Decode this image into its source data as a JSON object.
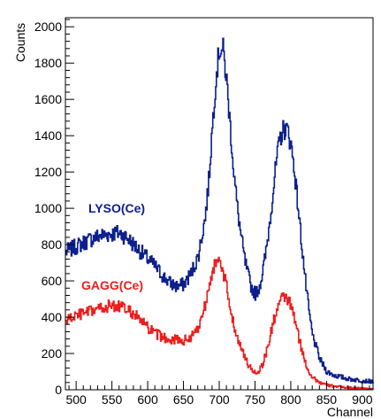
{
  "chart_data": {
    "type": "line",
    "title": "",
    "xlabel": "Channel",
    "ylabel": "Counts",
    "xlim": [
      485,
      915
    ],
    "ylim": [
      0,
      2050
    ],
    "xticks": [
      500,
      550,
      600,
      650,
      700,
      750,
      800,
      850,
      900
    ],
    "yticks": [
      0,
      200,
      400,
      600,
      800,
      1000,
      1200,
      1400,
      1600,
      1800,
      2000
    ],
    "grid": false,
    "colors": {
      "LYSO(Ce)": "#0b1e8c",
      "GAGG(Ce)": "#ee1c1c"
    },
    "series": [
      {
        "name": "LYSO(Ce)",
        "x": [
          485,
          500,
          510,
          520,
          530,
          540,
          550,
          560,
          570,
          580,
          590,
          600,
          610,
          620,
          630,
          640,
          650,
          660,
          670,
          680,
          685,
          690,
          695,
          700,
          705,
          710,
          715,
          720,
          725,
          730,
          735,
          740,
          745,
          750,
          755,
          760,
          765,
          770,
          775,
          780,
          785,
          790,
          795,
          800,
          805,
          810,
          815,
          820,
          825,
          830,
          840,
          850,
          860,
          870,
          880,
          890,
          900,
          915
        ],
        "y": [
          760,
          790,
          810,
          830,
          845,
          855,
          860,
          865,
          840,
          800,
          760,
          720,
          680,
          630,
          590,
          570,
          580,
          640,
          730,
          950,
          1150,
          1450,
          1720,
          1880,
          1870,
          1700,
          1450,
          1200,
          1000,
          850,
          720,
          630,
          560,
          530,
          560,
          640,
          760,
          920,
          1100,
          1270,
          1390,
          1440,
          1430,
          1350,
          1200,
          1000,
          800,
          600,
          430,
          300,
          170,
          100,
          80,
          70,
          60,
          55,
          50,
          45
        ]
      },
      {
        "name": "GAGG(Ce)",
        "x": [
          485,
          500,
          510,
          520,
          530,
          540,
          550,
          560,
          570,
          580,
          590,
          600,
          610,
          620,
          630,
          640,
          650,
          660,
          670,
          680,
          685,
          690,
          695,
          700,
          705,
          710,
          715,
          720,
          725,
          730,
          735,
          740,
          745,
          750,
          755,
          760,
          765,
          770,
          775,
          780,
          785,
          790,
          795,
          800,
          805,
          810,
          815,
          820,
          825,
          830,
          840,
          850,
          860,
          870,
          880,
          890,
          900,
          915
        ],
        "y": [
          380,
          410,
          420,
          430,
          445,
          455,
          465,
          460,
          440,
          420,
          380,
          340,
          310,
          290,
          280,
          275,
          270,
          290,
          340,
          470,
          580,
          660,
          700,
          690,
          650,
          560,
          450,
          360,
          290,
          230,
          180,
          140,
          110,
          95,
          105,
          140,
          200,
          280,
          370,
          440,
          490,
          510,
          500,
          460,
          390,
          300,
          220,
          150,
          100,
          70,
          40,
          25,
          20,
          15,
          12,
          10,
          8,
          5
        ]
      }
    ],
    "annotations": [
      {
        "text": "LYSO(Ce)",
        "color": "#0b1e8c"
      },
      {
        "text": "GAGG(Ce)",
        "color": "#ee1c1c"
      }
    ]
  }
}
